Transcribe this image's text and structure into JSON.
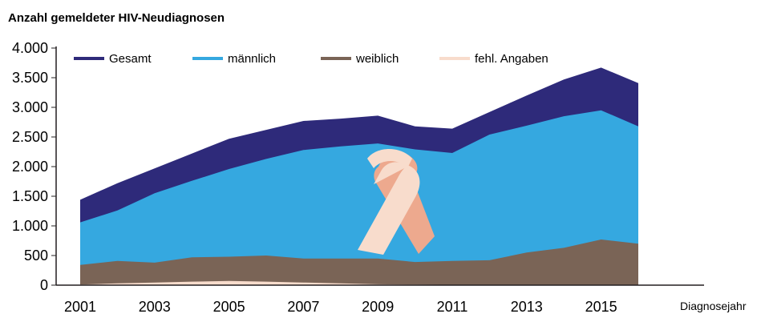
{
  "chart_data": {
    "type": "area",
    "title": "Anzahl gemeldeter HIV-Neudiagnosen",
    "xlabel": "Diagnosejahr",
    "ylabel": "",
    "ylim": [
      0,
      4000
    ],
    "yticks": [
      0,
      500,
      1000,
      1500,
      2000,
      2500,
      3000,
      3500,
      4000
    ],
    "ytick_labels": [
      "0",
      "500",
      "1.000",
      "1.500",
      "2.000",
      "2.500",
      "3.000",
      "3.500",
      "4.000"
    ],
    "xticks": [
      2001,
      2003,
      2005,
      2007,
      2009,
      2011,
      2013,
      2015
    ],
    "x": [
      2001,
      2002,
      2003,
      2004,
      2005,
      2006,
      2007,
      2008,
      2009,
      2010,
      2011,
      2012,
      2013,
      2014,
      2015,
      2016
    ],
    "series": [
      {
        "name": "Gesamt",
        "color": "#2e2a7a",
        "values": [
          1440,
          1720,
          1970,
          2220,
          2470,
          2620,
          2770,
          2810,
          2860,
          2680,
          2640,
          2920,
          3200,
          3470,
          3670,
          3410
        ]
      },
      {
        "name": "männlich",
        "color": "#35a8e0",
        "values": [
          1060,
          1260,
          1550,
          1760,
          1960,
          2130,
          2280,
          2340,
          2390,
          2290,
          2230,
          2540,
          2690,
          2850,
          2950,
          2680
        ]
      },
      {
        "name": "weiblich",
        "color": "#7a6456",
        "values": [
          340,
          410,
          380,
          470,
          480,
          500,
          450,
          450,
          450,
          390,
          410,
          420,
          550,
          630,
          770,
          700
        ]
      },
      {
        "name": "fehl. Angaben",
        "color": "#f8dccc",
        "values": [
          10,
          30,
          45,
          60,
          70,
          60,
          45,
          30,
          15,
          10,
          5,
          5,
          5,
          5,
          5,
          5
        ]
      }
    ],
    "legend_position": "top",
    "annotation": "awareness-ribbon"
  }
}
